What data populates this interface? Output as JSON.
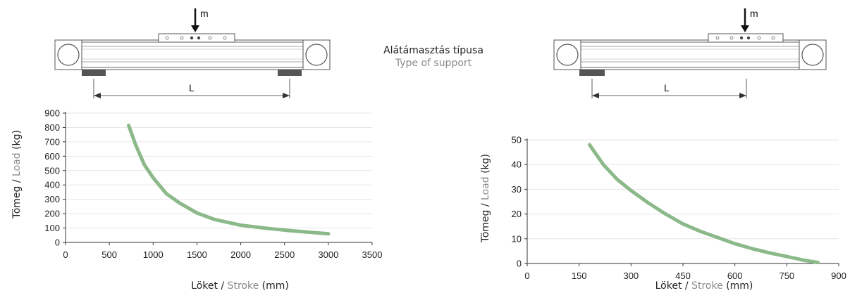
{
  "support_label": {
    "hu": "Alátámasztás típusa",
    "en": "Type of support"
  },
  "diagram": {
    "load_symbol": "m",
    "length_symbol": "L"
  },
  "colors": {
    "curve": "#8cb98a",
    "grid": "#e6e6e6",
    "axis": "#333333",
    "text": "#222222",
    "secondary_text": "#8a8a8a"
  },
  "chart_data": [
    {
      "type": "line",
      "xlabel": {
        "hu": "Löket",
        "separator": " / ",
        "en": "Stroke",
        "unit": " (mm)"
      },
      "ylabel": {
        "hu": "Tömeg",
        "separator": " / ",
        "en": "Load",
        "unit": " (kg)"
      },
      "xlim": [
        0,
        3500
      ],
      "ylim": [
        0,
        900
      ],
      "x_ticks": [
        0,
        500,
        1000,
        1500,
        2000,
        2500,
        3000,
        3500
      ],
      "y_ticks": [
        0,
        100,
        200,
        300,
        400,
        500,
        600,
        700,
        800,
        900
      ],
      "grid": true,
      "series": [
        {
          "x": [
            720,
            800,
            900,
            1000,
            1150,
            1300,
            1500,
            1700,
            2000,
            2300,
            2600,
            3000
          ],
          "y": [
            815,
            680,
            540,
            450,
            340,
            275,
            205,
            160,
            120,
            98,
            80,
            60
          ]
        }
      ]
    },
    {
      "type": "line",
      "xlabel": {
        "hu": "Löket",
        "separator": " / ",
        "en": "Stroke",
        "unit": " (mm)"
      },
      "ylabel": {
        "hu": "Tömeg",
        "separator": " / ",
        "en": "Load",
        "unit": " (kg)"
      },
      "xlim": [
        0,
        900
      ],
      "ylim": [
        0,
        50
      ],
      "x_ticks": [
        0,
        150,
        300,
        450,
        600,
        750,
        900
      ],
      "y_ticks": [
        0,
        10,
        20,
        30,
        40,
        50
      ],
      "grid": true,
      "series": [
        {
          "x": [
            180,
            220,
            260,
            300,
            350,
            400,
            450,
            500,
            550,
            600,
            650,
            700,
            750,
            800,
            840
          ],
          "y": [
            48,
            40,
            34,
            29.5,
            24.5,
            20,
            16,
            13,
            10.5,
            8,
            6,
            4.3,
            2.8,
            1.3,
            0.4
          ]
        }
      ]
    }
  ]
}
